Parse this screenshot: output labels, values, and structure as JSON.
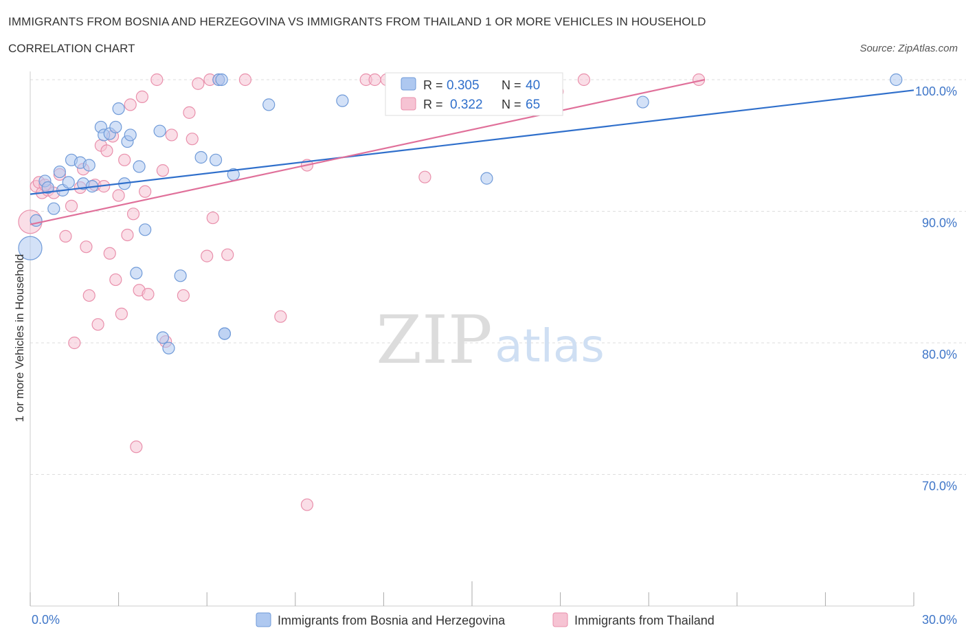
{
  "header": {
    "title": "IMMIGRANTS FROM BOSNIA AND HERZEGOVINA VS IMMIGRANTS FROM THAILAND 1 OR MORE VEHICLES IN HOUSEHOLD",
    "subtitle": "CORRELATION CHART",
    "source": "Source: ZipAtlas.com"
  },
  "colors": {
    "blue_fill": "#aec8f0",
    "blue_stroke": "#6f9ad8",
    "blue_line": "#2f6fcb",
    "pink_fill": "#f6c3d3",
    "pink_stroke": "#e98fab",
    "pink_line": "#e0709a",
    "tick_label": "#3f76c8",
    "grid": "#dddddd"
  },
  "watermark": {
    "zip": "ZIP",
    "atlas": "atlas"
  },
  "stats_box": {
    "rows": [
      {
        "r_label": "R =",
        "r_value": "0.305",
        "n_label": "N =",
        "n_value": "40"
      },
      {
        "r_label": "R =",
        "r_value": "0.322",
        "n_label": "N =",
        "n_value": "65"
      }
    ]
  },
  "chart_data": {
    "type": "scatter",
    "title": "IMMIGRANTS FROM BOSNIA AND HERZEGOVINA VS IMMIGRANTS FROM THAILAND 1 OR MORE VEHICLES IN HOUSEHOLD",
    "subtitle": "CORRELATION CHART",
    "xlabel": "",
    "ylabel": "1 or more Vehicles in Household",
    "xlim": [
      0,
      30
    ],
    "ylim": [
      60,
      100
    ],
    "x_tick_labels": [
      "0.0%",
      "30.0%"
    ],
    "y_ticks": [
      70,
      80,
      90,
      100
    ],
    "y_tick_labels": [
      "70.0%",
      "80.0%",
      "90.0%",
      "100.0%"
    ],
    "grid": true,
    "legend_position": "bottom-center",
    "series": [
      {
        "name": "Immigrants from Bosnia and Herzegovina",
        "color": "#aec8f0",
        "r": 0.305,
        "n": 40,
        "trend": {
          "x": [
            0,
            30
          ],
          "y": [
            91.3,
            99.2
          ]
        },
        "points": [
          [
            0.0,
            87.2,
            "large"
          ],
          [
            0.2,
            89.3
          ],
          [
            0.5,
            92.3
          ],
          [
            0.6,
            91.8
          ],
          [
            0.8,
            90.2
          ],
          [
            1.0,
            93.0
          ],
          [
            1.1,
            91.6
          ],
          [
            1.3,
            92.2
          ],
          [
            1.4,
            93.9
          ],
          [
            1.7,
            93.7
          ],
          [
            1.8,
            92.1
          ],
          [
            2.0,
            93.5
          ],
          [
            2.1,
            91.9
          ],
          [
            2.4,
            96.4
          ],
          [
            2.5,
            95.8
          ],
          [
            2.7,
            95.9
          ],
          [
            2.9,
            96.4
          ],
          [
            3.0,
            97.8
          ],
          [
            3.2,
            92.1
          ],
          [
            3.3,
            95.3
          ],
          [
            3.4,
            95.8
          ],
          [
            3.6,
            85.3
          ],
          [
            3.7,
            93.4
          ],
          [
            3.9,
            88.6
          ],
          [
            4.4,
            96.1
          ],
          [
            4.5,
            80.4
          ],
          [
            4.7,
            79.6
          ],
          [
            5.1,
            85.1
          ],
          [
            5.8,
            94.1
          ],
          [
            6.3,
            93.9
          ],
          [
            6.4,
            100.0
          ],
          [
            6.5,
            100.0
          ],
          [
            6.6,
            80.7
          ],
          [
            6.9,
            92.8
          ],
          [
            8.1,
            98.1
          ],
          [
            10.6,
            98.4
          ],
          [
            15.5,
            92.5
          ],
          [
            20.8,
            98.3
          ],
          [
            29.4,
            100.0
          ],
          [
            6.6,
            80.7
          ]
        ]
      },
      {
        "name": "Immigrants from Thailand",
        "color": "#f6c3d3",
        "r": 0.322,
        "n": 65,
        "trend": {
          "x": [
            0,
            22.9
          ],
          "y": [
            89.0,
            100.0
          ]
        },
        "points": [
          [
            0.0,
            89.2,
            "large"
          ],
          [
            0.2,
            91.9
          ],
          [
            0.3,
            92.2
          ],
          [
            0.4,
            91.4
          ],
          [
            0.6,
            91.6
          ],
          [
            0.8,
            91.4
          ],
          [
            1.0,
            92.8
          ],
          [
            1.2,
            88.1
          ],
          [
            1.4,
            90.4
          ],
          [
            1.5,
            80.0
          ],
          [
            1.7,
            91.8
          ],
          [
            1.8,
            93.2
          ],
          [
            1.9,
            87.3
          ],
          [
            2.0,
            83.6
          ],
          [
            2.2,
            92.0
          ],
          [
            2.3,
            81.4
          ],
          [
            2.4,
            95.0
          ],
          [
            2.5,
            91.9
          ],
          [
            2.6,
            94.6
          ],
          [
            2.7,
            86.8
          ],
          [
            2.8,
            95.7
          ],
          [
            2.9,
            84.8
          ],
          [
            3.0,
            91.2
          ],
          [
            3.1,
            82.2
          ],
          [
            3.2,
            93.9
          ],
          [
            3.3,
            88.2
          ],
          [
            3.4,
            98.1
          ],
          [
            3.5,
            89.8
          ],
          [
            3.6,
            72.1
          ],
          [
            3.7,
            84.0
          ],
          [
            3.8,
            98.7
          ],
          [
            3.9,
            91.5
          ],
          [
            4.0,
            83.7
          ],
          [
            4.3,
            100.0
          ],
          [
            4.5,
            93.1
          ],
          [
            4.6,
            80.1
          ],
          [
            4.8,
            95.8
          ],
          [
            5.2,
            83.6
          ],
          [
            5.4,
            97.5
          ],
          [
            5.5,
            95.5
          ],
          [
            5.7,
            99.7
          ],
          [
            6.0,
            86.6
          ],
          [
            6.1,
            100.0
          ],
          [
            6.2,
            89.5
          ],
          [
            6.4,
            100.0
          ],
          [
            6.7,
            86.7
          ],
          [
            7.3,
            100.0
          ],
          [
            8.5,
            82.0
          ],
          [
            9.4,
            93.5
          ],
          [
            9.4,
            67.7
          ],
          [
            11.4,
            100.0
          ],
          [
            11.7,
            100.0
          ],
          [
            12.1,
            100.0
          ],
          [
            12.6,
            100.0
          ],
          [
            13.0,
            100.0
          ],
          [
            13.3,
            99.9
          ],
          [
            13.4,
            99.8
          ],
          [
            13.6,
            100.0
          ],
          [
            13.8,
            99.7
          ],
          [
            14.0,
            99.5
          ],
          [
            13.4,
            92.6
          ],
          [
            17.9,
            99.1
          ],
          [
            18.8,
            100.0
          ],
          [
            22.7,
            100.0
          ],
          [
            0.5,
            92.0
          ]
        ]
      }
    ]
  }
}
